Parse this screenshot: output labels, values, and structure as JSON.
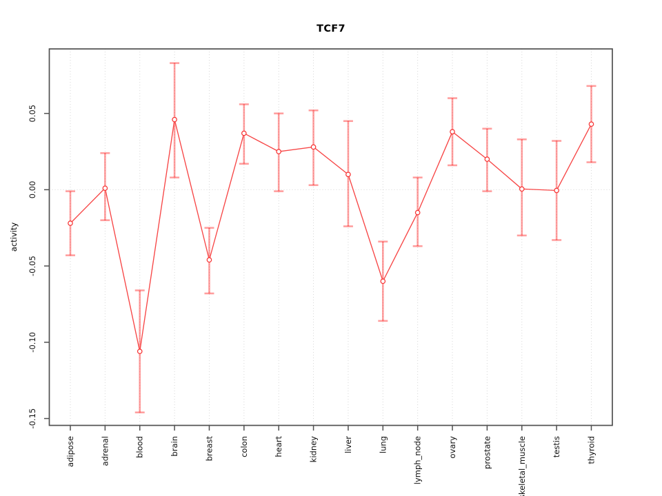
{
  "figure": {
    "background": "#ffffff"
  },
  "chart_data": {
    "type": "line",
    "title": "TCF7",
    "xlabel": "",
    "ylabel": "activity",
    "legend": "none",
    "grid": {
      "vertical_at_categories": true,
      "horizontal_zero_line": true,
      "style": "dotted",
      "color": "#d6d6d6"
    },
    "categories": [
      "adipose",
      "adrenal",
      "blood",
      "brain",
      "breast",
      "colon",
      "heart",
      "kidney",
      "liver",
      "lung",
      "lymph_node",
      "ovary",
      "prostate",
      "skeletal_muscle",
      "testis",
      "thyroid"
    ],
    "series": [
      {
        "name": "TCF7 activity",
        "values": [
          -0.022,
          0.001,
          -0.106,
          0.046,
          -0.046,
          0.037,
          0.025,
          0.028,
          0.01,
          -0.06,
          -0.015,
          0.038,
          0.02,
          0.0005,
          -0.0005,
          0.043
        ],
        "error_low": [
          -0.043,
          -0.02,
          -0.146,
          0.008,
          -0.068,
          0.017,
          -0.001,
          0.003,
          -0.024,
          -0.086,
          -0.037,
          0.016,
          -0.001,
          -0.03,
          -0.033,
          0.018
        ],
        "error_high": [
          -0.001,
          0.024,
          -0.066,
          0.083,
          -0.025,
          0.056,
          0.05,
          0.052,
          0.045,
          -0.034,
          0.008,
          0.06,
          0.04,
          0.033,
          0.032,
          0.068
        ]
      }
    ],
    "yticks": {
      "values": [
        0.05,
        0.0,
        -0.05,
        -0.1,
        -0.15
      ],
      "labels": [
        "0.05",
        "0.00",
        "-0.05",
        "-0.10",
        "-0.15"
      ]
    },
    "ylim": [
      -0.1545,
      0.0923
    ],
    "colors": {
      "line": "#f74545",
      "marker_stroke": "#f73333",
      "marker_fill": "#ffffff",
      "error_bar": "rgba(255,0,0,0.38)",
      "grid": "#d6d6d6",
      "axis": "#4f4f4f",
      "text": "#111111"
    }
  }
}
